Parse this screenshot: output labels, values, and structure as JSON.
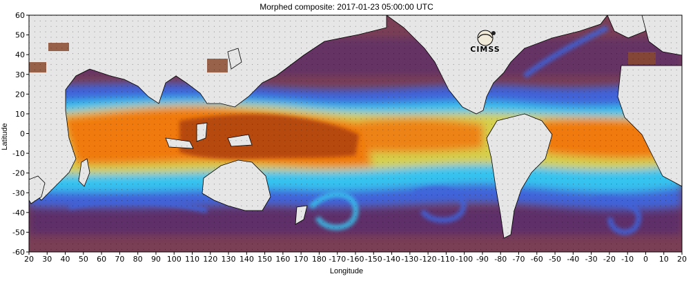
{
  "title": "Morphed composite: 2017-01-23 05:00:00 UTC",
  "axes": {
    "x_label": "Longitude",
    "y_label": "Latitude",
    "x_ticks": [
      "20",
      "30",
      "40",
      "50",
      "60",
      "70",
      "80",
      "90",
      "100",
      "110",
      "120",
      "130",
      "140",
      "150",
      "160",
      "170",
      "180",
      "-170",
      "-160",
      "-150",
      "-140",
      "-130",
      "-120",
      "-110",
      "-100",
      "-90",
      "-80",
      "-70",
      "-60",
      "-50",
      "-40",
      "-30",
      "-20",
      "-10",
      "0",
      "10",
      "20"
    ],
    "y_ticks": [
      "60",
      "50",
      "40",
      "30",
      "20",
      "10",
      "0",
      "-10",
      "-20",
      "-30",
      "-40",
      "-50",
      "-60"
    ],
    "lon_range": [
      20,
      380
    ],
    "lat_range": [
      -60,
      60
    ]
  },
  "logo": {
    "text": "CIMSS",
    "icon": "cimss-logo-icon"
  },
  "colors": {
    "land": "#e6e6e6",
    "dry": "#7a3f55",
    "very_dry": "#5b2f6b",
    "moist_mid": "#9a5a30",
    "moist": "#3f63d9",
    "wetter": "#35c3ef",
    "wet_green": "#7be08a",
    "wet_yellow": "#f2d22e",
    "wettest": "#f07a0f",
    "extreme": "#b0440a"
  }
}
